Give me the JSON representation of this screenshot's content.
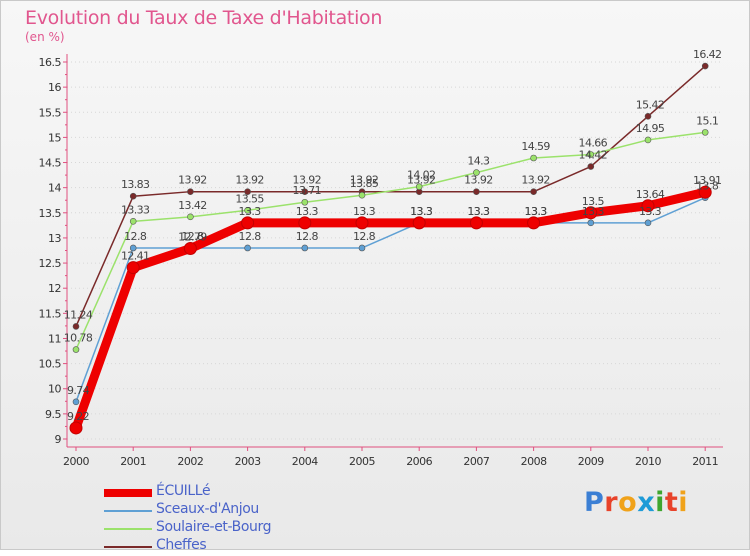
{
  "header": {
    "title": "Evolution du Taux de Taxe d'Habitation",
    "unit": "(en %)"
  },
  "brand": {
    "text": "Proxiti",
    "letter_colors": [
      "#3b7fd4",
      "#e8432a",
      "#f0a21a",
      "#1e9bd7",
      "#3fa62f",
      "#e8432a",
      "#f0a21a"
    ]
  },
  "chart_data": {
    "type": "line",
    "title": "Evolution du Taux de Taxe d'Habitation",
    "ylabel": "(en %)",
    "xlabel": "",
    "x": [
      "2000",
      "2001",
      "2002",
      "2003",
      "2004",
      "2005",
      "2006",
      "2007",
      "2008",
      "2009",
      "2010",
      "2011"
    ],
    "ylim": [
      9,
      16.5
    ],
    "yticks": [
      "9",
      "9.5",
      "10",
      "10.5",
      "11",
      "11.5",
      "12",
      "12.5",
      "13",
      "13.5",
      "14",
      "14.5",
      "15",
      "15.5",
      "16",
      "16.5"
    ],
    "grid": "horizontal dotted",
    "legend_position": "bottom-left",
    "series": [
      {
        "name": "ÉCUILLé",
        "color": "#ee0000",
        "values": [
          9.22,
          12.41,
          12.79,
          13.3,
          13.3,
          13.3,
          13.3,
          13.3,
          13.3,
          13.5,
          13.64,
          13.91
        ],
        "labels": [
          "9.22",
          "12.41",
          "12.79",
          "13.3",
          "13.3",
          "13.3",
          "13.3",
          "13.3",
          "13.3",
          "13.5",
          "13.64",
          "13.91"
        ]
      },
      {
        "name": "Sceaux-d'Anjou",
        "color": "#5fa0d4",
        "values": [
          9.74,
          12.8,
          12.8,
          12.8,
          12.8,
          12.8,
          13.3,
          13.3,
          13.3,
          13.3,
          13.3,
          13.8
        ],
        "labels": [
          "9.74",
          "12.8",
          "12.8",
          "12.8",
          "12.8",
          "12.8",
          "13.3",
          "13.3",
          "13.3",
          "13.3",
          "13.3",
          "13.8"
        ]
      },
      {
        "name": "Soulaire-et-Bourg",
        "color": "#9be26b",
        "values": [
          10.78,
          13.33,
          13.42,
          13.55,
          13.71,
          13.85,
          14.02,
          14.3,
          14.59,
          14.66,
          14.95,
          15.1
        ],
        "labels": [
          "10.78",
          "13.33",
          "13.42",
          "13.55",
          "13.71",
          "13.85",
          "14.02",
          "14.3",
          "14.59",
          "14.66",
          "14.95",
          "15.1"
        ]
      },
      {
        "name": "Cheffes",
        "color": "#7a2a2a",
        "values": [
          11.24,
          13.83,
          13.92,
          13.92,
          13.92,
          13.92,
          13.92,
          13.92,
          13.92,
          14.42,
          15.42,
          16.42
        ],
        "labels": [
          "11.24",
          "13.83",
          "13.92",
          "13.92",
          "13.92",
          "13.92",
          "13.92",
          "13.92",
          "13.92",
          "14.42",
          "15.42",
          "16.42"
        ]
      }
    ]
  }
}
